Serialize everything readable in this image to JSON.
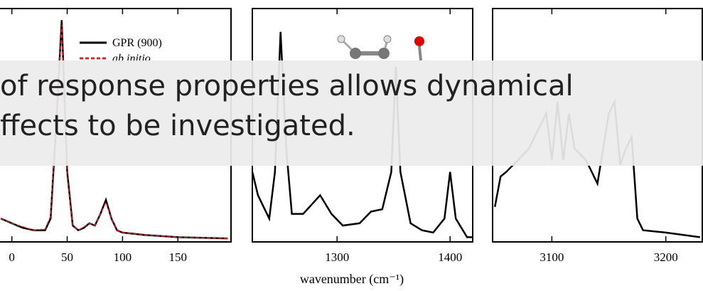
{
  "caption": [
    "of response properties allows dynamical",
    "ffects to be investigated."
  ],
  "xlabel": "wavenumber (cm⁻¹)",
  "chart_data": [
    {
      "type": "line",
      "xlim": [
        -12,
        198
      ],
      "ylim": [
        0,
        1
      ],
      "xticks": [
        0,
        50,
        100,
        150
      ],
      "legend": "top-right",
      "x": [
        -10,
        0,
        10,
        20,
        30,
        35,
        40,
        45,
        50,
        55,
        60,
        65,
        70,
        75,
        80,
        85,
        90,
        95,
        100,
        120,
        150,
        195
      ],
      "series": [
        {
          "name": "GPR (900)",
          "color": "#000000",
          "values": [
            0.1,
            0.08,
            0.06,
            0.05,
            0.05,
            0.1,
            0.5,
            0.95,
            0.3,
            0.07,
            0.05,
            0.06,
            0.08,
            0.07,
            0.12,
            0.18,
            0.1,
            0.05,
            0.04,
            0.03,
            0.02,
            0.015
          ]
        },
        {
          "name": "ab initio",
          "color": "#d62728",
          "values": [
            0.1,
            0.08,
            0.065,
            0.05,
            0.055,
            0.11,
            0.52,
            0.93,
            0.28,
            0.07,
            0.05,
            0.065,
            0.08,
            0.07,
            0.12,
            0.17,
            0.1,
            0.05,
            0.04,
            0.03,
            0.02,
            0.015
          ]
        }
      ]
    },
    {
      "type": "line",
      "xlim": [
        1225,
        1420
      ],
      "ylim": [
        0,
        1
      ],
      "xticks": [
        1300,
        1400
      ],
      "x": [
        1225,
        1230,
        1240,
        1245,
        1250,
        1255,
        1260,
        1270,
        1285,
        1295,
        1305,
        1320,
        1330,
        1340,
        1348,
        1352,
        1356,
        1365,
        1375,
        1385,
        1395,
        1400,
        1405,
        1415,
        1420
      ],
      "series": [
        {
          "color": "#000000",
          "values": [
            0.3,
            0.2,
            0.1,
            0.3,
            0.9,
            0.4,
            0.12,
            0.12,
            0.2,
            0.12,
            0.07,
            0.08,
            0.13,
            0.14,
            0.3,
            0.75,
            0.3,
            0.08,
            0.05,
            0.04,
            0.1,
            0.3,
            0.1,
            0.02,
            0.02
          ]
        }
      ]
    },
    {
      "type": "line",
      "xlim": [
        3048,
        3232
      ],
      "ylim": [
        0,
        1
      ],
      "xticks": [
        3100,
        3200
      ],
      "x": [
        3050,
        3055,
        3060,
        3070,
        3080,
        3090,
        3095,
        3100,
        3105,
        3110,
        3115,
        3120,
        3130,
        3140,
        3150,
        3155,
        3160,
        3165,
        3170,
        3175,
        3180,
        3200,
        3230
      ],
      "series": [
        {
          "color": "#000000",
          "values": [
            0.15,
            0.28,
            0.3,
            0.35,
            0.4,
            0.5,
            0.55,
            0.35,
            0.6,
            0.35,
            0.55,
            0.4,
            0.35,
            0.25,
            0.55,
            0.6,
            0.33,
            0.4,
            0.45,
            0.1,
            0.05,
            0.04,
            0.02
          ]
        }
      ]
    }
  ]
}
